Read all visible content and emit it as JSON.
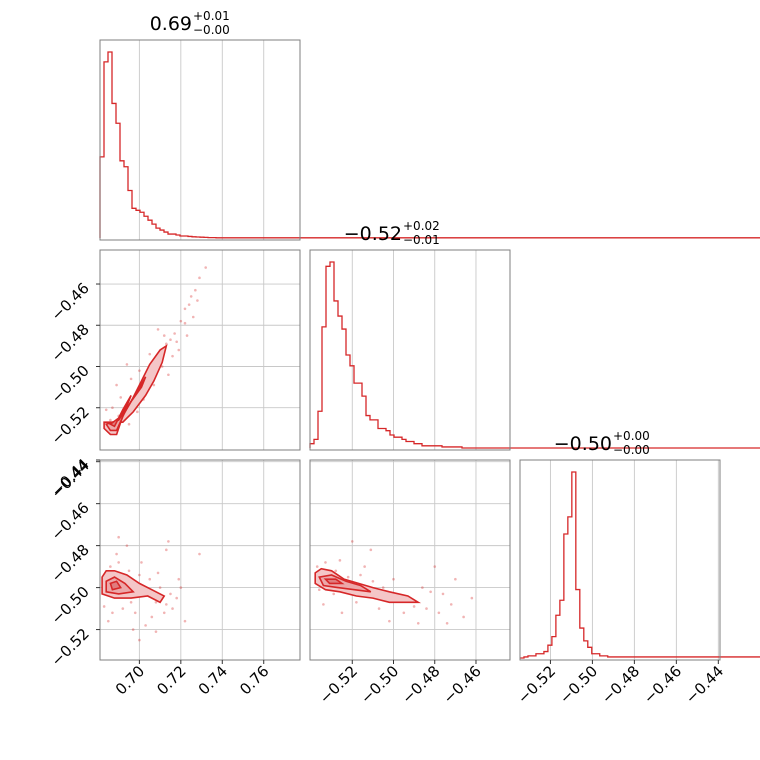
{
  "chart_data": {
    "type": "corner",
    "color": "#d62728",
    "params": [
      {
        "title": "0.69",
        "err_plus": "+0.01",
        "err_minus": "−0.00",
        "range": [
          0.681,
          0.7775
        ],
        "ticks": [
          0.7,
          0.72,
          0.74,
          0.76
        ],
        "tick_labels": [
          "0.70",
          "0.72",
          "0.74",
          "0.76"
        ],
        "hist": {
          "edges_start": 0.681,
          "bin_width": 0.00193,
          "heights": [
            0.41,
            0.89,
            0.94,
            0.68,
            0.58,
            0.39,
            0.36,
            0.24,
            0.15,
            0.14,
            0.13,
            0.11,
            0.09,
            0.07,
            0.05,
            0.04,
            0.03,
            0.02,
            0.02,
            0.015,
            0.01,
            0.01,
            0.008,
            0.006,
            0.005,
            0.004,
            0.003,
            0.002,
            0.002,
            0.001
          ]
        }
      },
      {
        "title": "−0.52",
        "err_plus": "+0.02",
        "err_minus": "−0.01",
        "range": [
          -0.5405,
          -0.4435
        ],
        "ticks": [
          -0.52,
          -0.5,
          -0.48,
          -0.46
        ],
        "tick_labels": [
          "−0.52",
          "−0.50",
          "−0.48",
          "−0.46"
        ],
        "hist": {
          "edges_start": -0.5405,
          "bin_width": 0.00194,
          "heights": [
            0.02,
            0.04,
            0.17,
            0.56,
            0.84,
            0.86,
            0.68,
            0.61,
            0.55,
            0.43,
            0.38,
            0.3,
            0.3,
            0.24,
            0.15,
            0.13,
            0.13,
            0.09,
            0.09,
            0.08,
            0.06,
            0.05,
            0.05,
            0.04,
            0.03,
            0.03,
            0.02,
            0.02,
            0.01,
            0.01,
            0.01,
            0.01,
            0.01,
            0.005,
            0.005,
            0.005,
            0.005,
            0.005,
            0.0
          ]
        }
      },
      {
        "title": "−0.50",
        "err_plus": "+0.00",
        "err_minus": "−0.00",
        "range": [
          -0.5345,
          -0.4392
        ],
        "ticks": [
          -0.52,
          -0.5,
          -0.48,
          -0.46,
          -0.44
        ],
        "tick_labels": [
          "−0.52",
          "−0.50",
          "−0.48",
          "−0.46",
          "−0.44"
        ],
        "hist": {
          "edges_start": -0.5345,
          "bin_width": 0.0019,
          "heights": [
            0.0,
            0.005,
            0.01,
            0.01,
            0.02,
            0.02,
            0.03,
            0.06,
            0.1,
            0.2,
            0.27,
            0.58,
            0.66,
            0.87,
            0.32,
            0.14,
            0.08,
            0.05,
            0.02,
            0.02,
            0.01,
            0.01,
            0.005,
            0.005,
            0.005,
            0.005
          ]
        }
      }
    ],
    "pair_plots": [
      {
        "x_param": 0,
        "y_param": 1,
        "center": [
          0.69,
          -0.524
        ],
        "contours": [
          [
            [
              0.683,
              -0.527
            ],
            [
              0.683,
              -0.53
            ],
            [
              0.686,
              -0.533
            ],
            [
              0.689,
              -0.533
            ],
            [
              0.692,
              -0.524
            ],
            [
              0.697,
              -0.515
            ],
            [
              0.701,
              -0.507
            ],
            [
              0.705,
              -0.499
            ],
            [
              0.71,
              -0.492
            ],
            [
              0.713,
              -0.49
            ],
            [
              0.711,
              -0.498
            ],
            [
              0.707,
              -0.507
            ],
            [
              0.703,
              -0.514
            ],
            [
              0.697,
              -0.522
            ],
            [
              0.692,
              -0.527
            ]
          ],
          [
            [
              0.684,
              -0.528
            ],
            [
              0.686,
              -0.531
            ],
            [
              0.689,
              -0.531
            ],
            [
              0.693,
              -0.522
            ],
            [
              0.699,
              -0.512
            ],
            [
              0.703,
              -0.505
            ],
            [
              0.701,
              -0.51
            ],
            [
              0.696,
              -0.517
            ],
            [
              0.69,
              -0.526
            ]
          ],
          [
            [
              0.686,
              -0.528
            ],
            [
              0.688,
              -0.529
            ],
            [
              0.692,
              -0.521
            ],
            [
              0.696,
              -0.514
            ],
            [
              0.694,
              -0.519
            ],
            [
              0.69,
              -0.525
            ]
          ]
        ],
        "scatter": [
          [
            0.686,
            -0.526
          ],
          [
            0.69,
            -0.524
          ],
          [
            0.694,
            -0.52
          ],
          [
            0.699,
            -0.512
          ],
          [
            0.704,
            -0.506
          ],
          [
            0.708,
            -0.498
          ],
          [
            0.713,
            -0.489
          ],
          [
            0.717,
            -0.484
          ],
          [
            0.72,
            -0.478
          ],
          [
            0.722,
            -0.472
          ],
          [
            0.725,
            -0.466
          ],
          [
            0.727,
            -0.463
          ],
          [
            0.729,
            -0.457
          ],
          [
            0.715,
            -0.487
          ],
          [
            0.712,
            -0.493
          ],
          [
            0.709,
            -0.482
          ],
          [
            0.718,
            -0.488
          ],
          [
            0.722,
            -0.479
          ],
          [
            0.705,
            -0.494
          ],
          [
            0.7,
            -0.502
          ],
          [
            0.696,
            -0.506
          ],
          [
            0.691,
            -0.515
          ],
          [
            0.687,
            -0.52
          ],
          [
            0.684,
            -0.521
          ],
          [
            0.695,
            -0.528
          ],
          [
            0.699,
            -0.522
          ],
          [
            0.702,
            -0.516
          ],
          [
            0.707,
            -0.509
          ],
          [
            0.711,
            -0.5
          ],
          [
            0.716,
            -0.495
          ],
          [
            0.719,
            -0.492
          ],
          [
            0.723,
            -0.485
          ],
          [
            0.726,
            -0.476
          ],
          [
            0.708,
            -0.504
          ],
          [
            0.702,
            -0.509
          ],
          [
            0.712,
            -0.485
          ],
          [
            0.689,
            -0.509
          ],
          [
            0.694,
            -0.499
          ],
          [
            0.714,
            -0.504
          ],
          [
            0.724,
            -0.47
          ],
          [
            0.728,
            -0.468
          ],
          [
            0.732,
            -0.452
          ]
        ]
      },
      {
        "x_param": 0,
        "y_param": 2,
        "center": [
          0.687,
          -0.498
        ],
        "contours": [
          [
            [
              0.682,
              -0.495
            ],
            [
              0.682,
              -0.503
            ],
            [
              0.688,
              -0.505
            ],
            [
              0.696,
              -0.505
            ],
            [
              0.704,
              -0.504
            ],
            [
              0.71,
              -0.507
            ],
            [
              0.712,
              -0.504
            ],
            [
              0.706,
              -0.501
            ],
            [
              0.7,
              -0.498
            ],
            [
              0.694,
              -0.494
            ],
            [
              0.688,
              -0.492
            ],
            [
              0.684,
              -0.492
            ]
          ],
          [
            [
              0.684,
              -0.497
            ],
            [
              0.684,
              -0.502
            ],
            [
              0.69,
              -0.503
            ],
            [
              0.697,
              -0.502
            ],
            [
              0.693,
              -0.498
            ],
            [
              0.688,
              -0.495
            ]
          ],
          [
            [
              0.686,
              -0.498
            ],
            [
              0.687,
              -0.501
            ],
            [
              0.691,
              -0.5
            ],
            [
              0.689,
              -0.497
            ]
          ]
        ],
        "scatter": [
          [
            0.686,
            -0.49
          ],
          [
            0.69,
            -0.488
          ],
          [
            0.695,
            -0.492
          ],
          [
            0.7,
            -0.494
          ],
          [
            0.705,
            -0.496
          ],
          [
            0.71,
            -0.5
          ],
          [
            0.715,
            -0.503
          ],
          [
            0.712,
            -0.512
          ],
          [
            0.706,
            -0.514
          ],
          [
            0.698,
            -0.512
          ],
          [
            0.692,
            -0.51
          ],
          [
            0.687,
            -0.512
          ],
          [
            0.683,
            -0.509
          ],
          [
            0.701,
            -0.488
          ],
          [
            0.708,
            -0.507
          ],
          [
            0.718,
            -0.505
          ],
          [
            0.716,
            -0.51
          ],
          [
            0.694,
            -0.48
          ],
          [
            0.689,
            -0.484
          ],
          [
            0.703,
            -0.518
          ],
          [
            0.697,
            -0.52
          ],
          [
            0.719,
            -0.496
          ],
          [
            0.714,
            -0.478
          ],
          [
            0.722,
            -0.516
          ],
          [
            0.685,
            -0.516
          ],
          [
            0.69,
            -0.476
          ],
          [
            0.709,
            -0.493
          ],
          [
            0.713,
            -0.508
          ],
          [
            0.696,
            -0.507
          ],
          [
            0.713,
            -0.482
          ],
          [
            0.729,
            -0.484
          ],
          [
            0.72,
            -0.5
          ],
          [
            0.708,
            -0.521
          ],
          [
            0.7,
            -0.525
          ]
        ]
      },
      {
        "x_param": 1,
        "y_param": 2,
        "center": [
          -0.531,
          -0.496
        ],
        "contours": [
          [
            [
              -0.538,
              -0.493
            ],
            [
              -0.538,
              -0.498
            ],
            [
              -0.533,
              -0.501
            ],
            [
              -0.526,
              -0.502
            ],
            [
              -0.518,
              -0.504
            ],
            [
              -0.51,
              -0.505
            ],
            [
              -0.502,
              -0.507
            ],
            [
              -0.494,
              -0.507
            ],
            [
              -0.488,
              -0.507
            ],
            [
              -0.493,
              -0.504
            ],
            [
              -0.502,
              -0.502
            ],
            [
              -0.51,
              -0.5
            ],
            [
              -0.517,
              -0.498
            ],
            [
              -0.524,
              -0.496
            ],
            [
              -0.53,
              -0.492
            ],
            [
              -0.535,
              -0.491
            ]
          ],
          [
            [
              -0.536,
              -0.495
            ],
            [
              -0.534,
              -0.499
            ],
            [
              -0.527,
              -0.5
            ],
            [
              -0.519,
              -0.501
            ],
            [
              -0.511,
              -0.502
            ],
            [
              -0.516,
              -0.499
            ],
            [
              -0.523,
              -0.497
            ],
            [
              -0.53,
              -0.494
            ]
          ],
          [
            [
              -0.533,
              -0.496
            ],
            [
              -0.531,
              -0.498
            ],
            [
              -0.525,
              -0.498
            ],
            [
              -0.528,
              -0.496
            ]
          ]
        ],
        "scatter": [
          [
            -0.537,
            -0.49
          ],
          [
            -0.533,
            -0.488
          ],
          [
            -0.528,
            -0.492
          ],
          [
            -0.522,
            -0.495
          ],
          [
            -0.516,
            -0.494
          ],
          [
            -0.51,
            -0.497
          ],
          [
            -0.505,
            -0.5
          ],
          [
            -0.499,
            -0.503
          ],
          [
            -0.494,
            -0.505
          ],
          [
            -0.49,
            -0.509
          ],
          [
            -0.484,
            -0.51
          ],
          [
            -0.478,
            -0.512
          ],
          [
            -0.472,
            -0.508
          ],
          [
            -0.466,
            -0.514
          ],
          [
            -0.482,
            -0.502
          ],
          [
            -0.495,
            -0.512
          ],
          [
            -0.507,
            -0.51
          ],
          [
            -0.518,
            -0.507
          ],
          [
            -0.529,
            -0.503
          ],
          [
            -0.536,
            -0.501
          ],
          [
            -0.526,
            -0.487
          ],
          [
            -0.514,
            -0.49
          ],
          [
            -0.5,
            -0.496
          ],
          [
            -0.486,
            -0.5
          ],
          [
            -0.476,
            -0.503
          ],
          [
            -0.47,
            -0.496
          ],
          [
            -0.52,
            -0.478
          ],
          [
            -0.511,
            -0.482
          ],
          [
            -0.488,
            -0.517
          ],
          [
            -0.502,
            -0.516
          ],
          [
            -0.474,
            -0.517
          ],
          [
            -0.462,
            -0.505
          ],
          [
            -0.48,
            -0.49
          ],
          [
            -0.525,
            -0.512
          ],
          [
            -0.534,
            -0.508
          ]
        ]
      }
    ]
  }
}
